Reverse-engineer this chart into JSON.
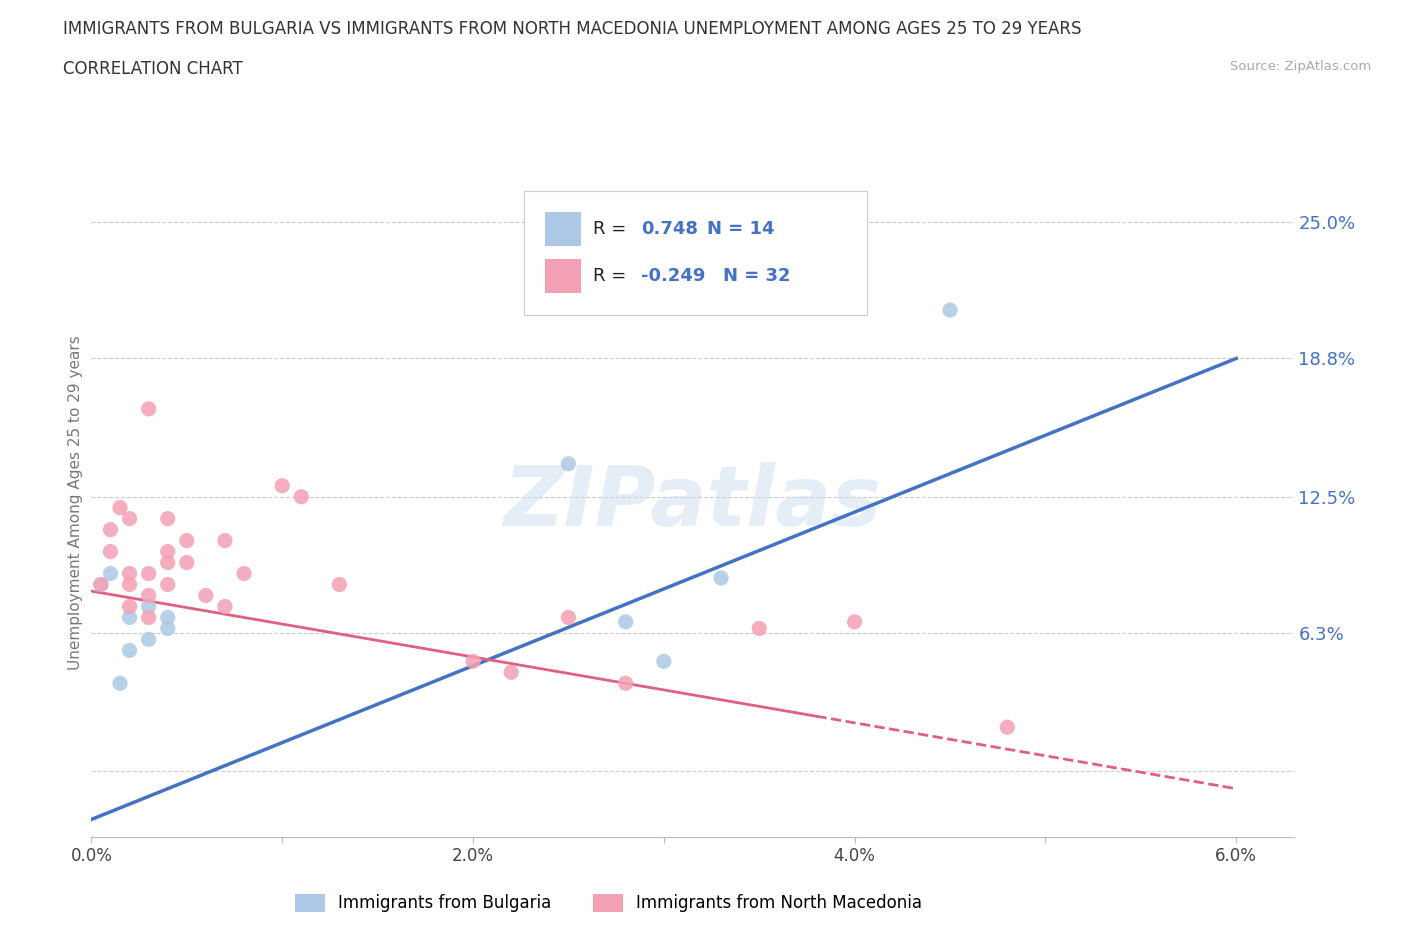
{
  "title_line1": "IMMIGRANTS FROM BULGARIA VS IMMIGRANTS FROM NORTH MACEDONIA UNEMPLOYMENT AMONG AGES 25 TO 29 YEARS",
  "title_line2": "CORRELATION CHART",
  "source": "Source: ZipAtlas.com",
  "ylabel": "Unemployment Among Ages 25 to 29 years",
  "xlim": [
    0.0,
    0.063
  ],
  "ylim": [
    -0.03,
    0.275
  ],
  "ytick_vals": [
    0.0,
    0.063,
    0.125,
    0.188,
    0.25
  ],
  "ytick_labels": [
    "",
    "6.3%",
    "12.5%",
    "18.8%",
    "25.0%"
  ],
  "xtick_vals": [
    0.0,
    0.01,
    0.02,
    0.03,
    0.04,
    0.05,
    0.06
  ],
  "xtick_labels": [
    "0.0%",
    "",
    "2.0%",
    "",
    "4.0%",
    "",
    "6.0%"
  ],
  "bulgaria_color": "#adc8e6",
  "macedonia_color": "#f4a0b4",
  "bulgaria_line_color": "#4472c4",
  "macedonia_line_color": "#e06080",
  "R_bulgaria": "0.748",
  "N_bulgaria": "14",
  "R_macedonia": "-0.249",
  "N_macedonia": "32",
  "watermark": "ZIPatlas",
  "bulgaria_trend_x": [
    0.0,
    0.06
  ],
  "bulgaria_trend_y": [
    -0.022,
    0.188
  ],
  "macedonia_trend_x": [
    0.0,
    0.06
  ],
  "macedonia_trend_y": [
    0.082,
    -0.008
  ],
  "bulgaria_x": [
    0.0005,
    0.001,
    0.0015,
    0.002,
    0.002,
    0.003,
    0.003,
    0.004,
    0.004,
    0.025,
    0.028,
    0.03,
    0.033,
    0.045
  ],
  "bulgaria_y": [
    0.085,
    0.09,
    0.04,
    0.055,
    0.07,
    0.06,
    0.075,
    0.065,
    0.07,
    0.14,
    0.068,
    0.05,
    0.088,
    0.21
  ],
  "macedonia_x": [
    0.0005,
    0.001,
    0.001,
    0.0015,
    0.002,
    0.002,
    0.002,
    0.002,
    0.003,
    0.003,
    0.003,
    0.003,
    0.004,
    0.004,
    0.004,
    0.004,
    0.005,
    0.005,
    0.006,
    0.007,
    0.007,
    0.008,
    0.01,
    0.011,
    0.013,
    0.02,
    0.022,
    0.025,
    0.028,
    0.035,
    0.04,
    0.048
  ],
  "macedonia_y": [
    0.085,
    0.1,
    0.11,
    0.12,
    0.075,
    0.085,
    0.09,
    0.115,
    0.07,
    0.08,
    0.09,
    0.165,
    0.085,
    0.095,
    0.1,
    0.115,
    0.095,
    0.105,
    0.08,
    0.075,
    0.105,
    0.09,
    0.13,
    0.125,
    0.085,
    0.05,
    0.045,
    0.07,
    0.04,
    0.065,
    0.068,
    0.02
  ]
}
